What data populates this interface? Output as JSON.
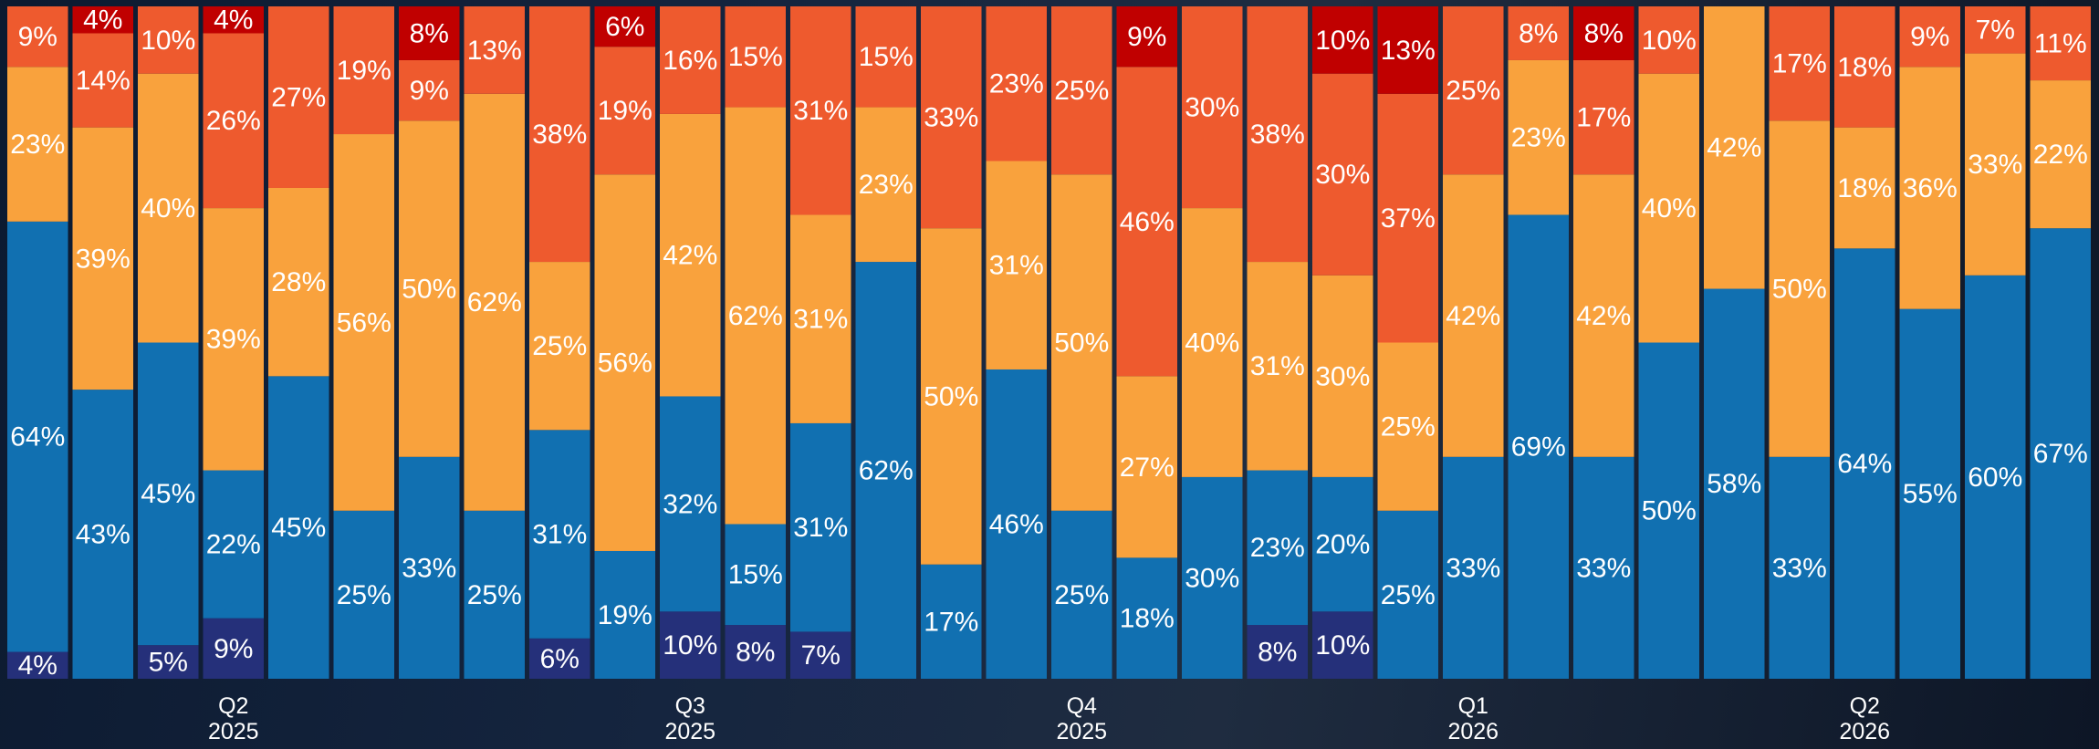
{
  "chart_data": {
    "type": "stacked_bar",
    "categories": [
      null,
      null,
      null,
      "Q2\n2025",
      null,
      null,
      null,
      null,
      null,
      null,
      "Q3\n2025",
      null,
      null,
      null,
      null,
      null,
      "Q4\n2025",
      null,
      null,
      null,
      null,
      null,
      "Q1\n2026",
      null,
      null,
      null,
      null,
      null,
      "Q2\n2026",
      null,
      null,
      null
    ],
    "ylim": [
      0,
      100
    ],
    "series": [
      {
        "color": "#25307a",
        "values": [
          4,
          null,
          5,
          9,
          null,
          null,
          null,
          null,
          6,
          null,
          10,
          8,
          7,
          null,
          null,
          null,
          null,
          null,
          null,
          8,
          10,
          null,
          null,
          null,
          null,
          null,
          null,
          null,
          null,
          null,
          null,
          null
        ],
        "value_labels": [
          "4%",
          null,
          "5%",
          "9%",
          null,
          null,
          null,
          null,
          "6%",
          null,
          "10%",
          "8%",
          "7%",
          null,
          null,
          null,
          null,
          null,
          null,
          "8%",
          "10%",
          null,
          null,
          null,
          null,
          null,
          null,
          null,
          null,
          null,
          null,
          null
        ]
      },
      {
        "color": "#1170b1",
        "values": [
          64,
          43,
          45,
          22,
          45,
          25,
          33,
          25,
          31,
          19,
          32,
          15,
          31,
          62,
          17,
          46,
          25,
          18,
          30,
          23,
          20,
          25,
          33,
          69,
          33,
          50,
          58,
          33,
          64,
          55,
          60,
          67
        ],
        "value_labels": [
          "64%",
          "43%",
          "45%",
          "22%",
          "45%",
          "25%",
          "33%",
          "25%",
          "31%",
          "19%",
          "32%",
          "15%",
          "31%",
          "62%",
          "17%",
          "46%",
          "25%",
          "18%",
          "30%",
          "23%",
          "20%",
          "25%",
          "33%",
          "69%",
          "33%",
          "50%",
          "58%",
          "33%",
          "64%",
          "55%",
          "60%",
          "67%"
        ]
      },
      {
        "color": "#f9a23d",
        "values": [
          23,
          39,
          40,
          39,
          28,
          56,
          50,
          62,
          25,
          56,
          42,
          62,
          31,
          23,
          50,
          31,
          50,
          27,
          40,
          31,
          30,
          25,
          42,
          23,
          42,
          40,
          42,
          50,
          18,
          36,
          33,
          22
        ],
        "value_labels": [
          "23%",
          "39%",
          "40%",
          "39%",
          "28%",
          "56%",
          "50%",
          "62%",
          "25%",
          "56%",
          "42%",
          "62%",
          "31%",
          "23%",
          "50%",
          "31%",
          "50%",
          "27%",
          "40%",
          "31%",
          "30%",
          "25%",
          "42%",
          "23%",
          "42%",
          "40%",
          "42%",
          "50%",
          "18%",
          "36%",
          "33%",
          "22%"
        ]
      },
      {
        "color": "#ee5a2e",
        "values": [
          9,
          14,
          10,
          26,
          27,
          19,
          9,
          13,
          38,
          19,
          16,
          15,
          31,
          15,
          33,
          23,
          25,
          46,
          30,
          38,
          30,
          37,
          25,
          8,
          17,
          10,
          null,
          17,
          18,
          9,
          7,
          11
        ],
        "value_labels": [
          "9%",
          "14%",
          "10%",
          "26%",
          "27%",
          "19%",
          "9%",
          "13%",
          "38%",
          "19%",
          "16%",
          "15%",
          "31%",
          "15%",
          "33%",
          "23%",
          "25%",
          "46%",
          "30%",
          "38%",
          "30%",
          "37%",
          "25%",
          "8%",
          "17%",
          "10%",
          null,
          "17%",
          "18%",
          "9%",
          "7%",
          "11%"
        ]
      },
      {
        "color": "#c00000",
        "values": [
          null,
          4,
          null,
          4,
          null,
          null,
          8,
          null,
          null,
          6,
          null,
          null,
          null,
          null,
          null,
          null,
          null,
          9,
          null,
          null,
          10,
          13,
          null,
          null,
          8,
          null,
          null,
          null,
          null,
          null,
          null,
          null
        ],
        "value_labels": [
          null,
          "4%",
          null,
          "4%",
          null,
          null,
          "8%",
          null,
          null,
          "6%",
          null,
          null,
          null,
          null,
          null,
          null,
          null,
          "9%",
          null,
          null,
          "10%",
          "13%",
          null,
          null,
          "8%",
          null,
          null,
          null,
          null,
          null,
          null,
          null
        ]
      }
    ]
  }
}
